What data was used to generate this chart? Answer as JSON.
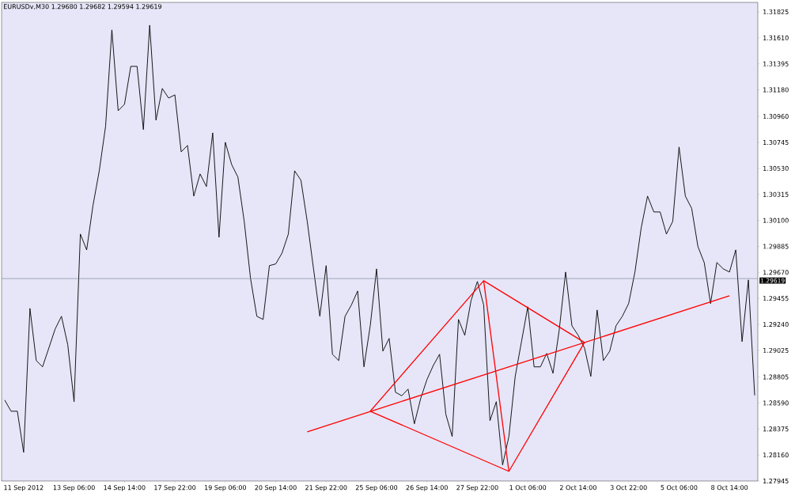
{
  "chart_data": {
    "type": "line",
    "title": "EURUSDv,M30  1.29680 1.29682 1.29594 1.29619",
    "categories": [
      null,
      null,
      null,
      "11 Sep 2012",
      null,
      null,
      null,
      null,
      null,
      null,
      null,
      "13 Sep 06:00",
      null,
      null,
      null,
      null,
      null,
      null,
      null,
      "14 Sep 14:00",
      null,
      null,
      null,
      null,
      null,
      null,
      null,
      "17 Sep 22:00",
      null,
      null,
      null,
      null,
      null,
      null,
      null,
      "19 Sep 06:00",
      null,
      null,
      null,
      null,
      null,
      null,
      null,
      "20 Sep 14:00",
      null,
      null,
      null,
      null,
      null,
      null,
      null,
      "21 Sep 22:00",
      null,
      null,
      null,
      null,
      null,
      null,
      null,
      "25 Sep 06:00",
      null,
      null,
      null,
      null,
      null,
      null,
      null,
      "26 Sep 14:00",
      null,
      null,
      null,
      null,
      null,
      null,
      null,
      "27 Sep 22:00",
      null,
      null,
      null,
      null,
      null,
      null,
      null,
      "1 Oct 06:00",
      null,
      null,
      null,
      null,
      null,
      null,
      null,
      "2 Oct 14:00",
      null,
      null,
      null,
      null,
      null,
      null,
      null,
      "3 Oct 22:00",
      null,
      null,
      null,
      null,
      null,
      null,
      null,
      "5 Oct 06:00",
      null,
      null,
      null,
      null,
      null,
      null,
      null,
      "8 Oct 14:00",
      null,
      null,
      null,
      null
    ],
    "ylim": [
      1.27945,
      1.31903
    ],
    "yticks": [
      {
        "value": 1.31825,
        "label": "1.31825"
      },
      {
        "value": 1.3161,
        "label": "1.31610"
      },
      {
        "value": 1.31395,
        "label": "1.31395"
      },
      {
        "value": 1.3118,
        "label": "1.31180"
      },
      {
        "value": 1.3096,
        "label": "1.30960"
      },
      {
        "value": 1.30745,
        "label": "1.30745"
      },
      {
        "value": 1.3053,
        "label": "1.30530"
      },
      {
        "value": 1.30315,
        "label": "1.30315"
      },
      {
        "value": 1.301,
        "label": "1.30100"
      },
      {
        "value": 1.29885,
        "label": "1.29885"
      },
      {
        "value": 1.2967,
        "label": "1.29670"
      },
      {
        "value": 1.29455,
        "label": "1.29455"
      },
      {
        "value": 1.2924,
        "label": "1.29240"
      },
      {
        "value": 1.29025,
        "label": "1.29025"
      },
      {
        "value": 1.28805,
        "label": "1.28805"
      },
      {
        "value": 1.2859,
        "label": "1.28590"
      },
      {
        "value": 1.28375,
        "label": "1.28375"
      },
      {
        "value": 1.2816,
        "label": "1.28160"
      },
      {
        "value": 1.27945,
        "label": "1.27945"
      }
    ],
    "ref_lines": [
      {
        "axis": "y",
        "value": 1.29619,
        "label": "1.29619",
        "color": "#708090"
      }
    ],
    "series": [
      {
        "color": "#000000",
        "values": [
          1.28614,
          1.28522,
          1.28522,
          1.28182,
          1.29372,
          1.28941,
          1.28889,
          1.29045,
          1.29202,
          1.29307,
          1.29072,
          1.28601,
          1.29987,
          1.29856,
          1.30223,
          1.3051,
          1.30877,
          1.31675,
          1.31007,
          1.3106,
          1.31374,
          1.31374,
          1.30851,
          1.31714,
          1.30929,
          1.31191,
          1.31112,
          1.31138,
          1.30667,
          1.3072,
          1.30301,
          1.30484,
          1.3038,
          1.30824,
          1.29961,
          1.30746,
          1.30563,
          1.30458,
          1.30092,
          1.29621,
          1.29307,
          1.29281,
          1.29726,
          1.2974,
          1.2983,
          1.29987,
          1.3051,
          1.30432,
          1.30092,
          1.29699,
          1.29307,
          1.29726,
          1.28993,
          1.28941,
          1.29307,
          1.294,
          1.29516,
          1.28889,
          1.29229,
          1.29699,
          1.29019,
          1.29124,
          1.28679,
          1.2865,
          1.28705,
          1.28418,
          1.28627,
          1.28784,
          1.289,
          1.28993,
          1.28496,
          1.28313,
          1.29281,
          1.2915,
          1.29438,
          1.29595,
          1.294,
          1.28444,
          1.28601,
          1.28078,
          1.28313,
          1.2881,
          1.29098,
          1.29386,
          1.28889,
          1.28889,
          1.29,
          1.28836,
          1.292,
          1.29673,
          1.29229,
          1.2915,
          1.29045,
          1.2881,
          1.29359,
          1.28941,
          1.29019,
          1.29229,
          1.29307,
          1.29412,
          1.29673,
          1.3004,
          1.30301,
          1.3017,
          1.3017,
          1.29987,
          1.30092,
          1.30707,
          1.30301,
          1.302,
          1.29883,
          1.2975,
          1.29412,
          1.29752,
          1.297,
          1.29673,
          1.29856,
          1.29098,
          1.29608,
          1.28653
        ]
      },
      {
        "type": "line",
        "color": "#ff0000",
        "values": [
          null,
          null,
          null,
          null,
          null,
          null,
          null,
          null,
          null,
          null,
          null,
          null,
          null,
          null,
          null,
          null,
          null,
          null,
          null,
          null,
          null,
          null,
          null,
          null,
          null,
          null,
          null,
          null,
          null,
          null,
          null,
          null,
          null,
          null,
          null,
          null,
          null,
          null,
          null,
          null,
          null,
          null,
          null,
          null,
          null,
          null,
          null,
          null,
          1.28352,
          null,
          null,
          null,
          null,
          null,
          null,
          null,
          null,
          null,
          null,
          null,
          null,
          null,
          null,
          null,
          null,
          null,
          null,
          null,
          null,
          null,
          null,
          null,
          null,
          null,
          null,
          null,
          null,
          null,
          null,
          null,
          null,
          null,
          null,
          null,
          null,
          null,
          null,
          null,
          null,
          null,
          null,
          null,
          null,
          null,
          null,
          null,
          null,
          null,
          null,
          null,
          null,
          null,
          null,
          null,
          null,
          null,
          null,
          null,
          null,
          null,
          null,
          null,
          null,
          null,
          null,
          1.29476,
          null,
          null,
          null,
          null
        ]
      },
      {
        "type": "line",
        "color": "#ff0000",
        "values": [
          null,
          null,
          null,
          null,
          null,
          null,
          null,
          null,
          null,
          null,
          null,
          null,
          null,
          null,
          null,
          null,
          null,
          null,
          null,
          null,
          null,
          null,
          null,
          null,
          null,
          null,
          null,
          null,
          null,
          null,
          null,
          null,
          null,
          null,
          null,
          null,
          null,
          null,
          null,
          null,
          null,
          null,
          null,
          null,
          null,
          null,
          null,
          null,
          null,
          null,
          null,
          null,
          null,
          null,
          null,
          null,
          null,
          null,
          1.28522,
          null,
          null,
          null,
          null,
          null,
          null,
          null,
          null,
          null,
          null,
          null,
          null,
          null,
          null,
          null,
          null,
          null,
          1.29601,
          null,
          null,
          null,
          null,
          null,
          null,
          null,
          null,
          null,
          null,
          null,
          null,
          null,
          null,
          null,
          1.29091,
          null,
          null,
          null,
          null,
          null,
          null,
          null,
          null,
          null,
          null,
          null,
          null,
          null,
          null,
          null,
          null,
          null,
          null,
          null,
          null,
          null,
          null,
          null,
          null,
          null,
          null,
          null
        ]
      },
      {
        "type": "line",
        "color": "#ff0000",
        "values": [
          null,
          null,
          null,
          null,
          null,
          null,
          null,
          null,
          null,
          null,
          null,
          null,
          null,
          null,
          null,
          null,
          null,
          null,
          null,
          null,
          null,
          null,
          null,
          null,
          null,
          null,
          null,
          null,
          null,
          null,
          null,
          null,
          null,
          null,
          null,
          null,
          null,
          null,
          null,
          null,
          null,
          null,
          null,
          null,
          null,
          null,
          null,
          null,
          null,
          null,
          null,
          null,
          null,
          null,
          null,
          null,
          null,
          null,
          1.28522,
          null,
          null,
          null,
          null,
          null,
          null,
          null,
          null,
          null,
          null,
          null,
          null,
          null,
          null,
          null,
          null,
          null,
          null,
          null,
          null,
          null,
          1.28025,
          null,
          null,
          null,
          null,
          null,
          null,
          null,
          null,
          null,
          null,
          null,
          1.29091,
          null,
          null,
          null,
          null,
          null,
          null,
          null,
          null,
          null,
          null,
          null,
          null,
          null,
          null,
          null,
          null,
          null,
          null,
          null,
          null,
          null,
          null,
          null,
          null,
          null,
          null,
          null
        ]
      },
      {
        "type": "line",
        "color": "#ff0000",
        "values": [
          null,
          null,
          null,
          null,
          null,
          null,
          null,
          null,
          null,
          null,
          null,
          null,
          null,
          null,
          null,
          null,
          null,
          null,
          null,
          null,
          null,
          null,
          null,
          null,
          null,
          null,
          null,
          null,
          null,
          null,
          null,
          null,
          null,
          null,
          null,
          null,
          null,
          null,
          null,
          null,
          null,
          null,
          null,
          null,
          null,
          null,
          null,
          null,
          null,
          null,
          null,
          null,
          null,
          null,
          null,
          null,
          null,
          null,
          null,
          null,
          null,
          null,
          null,
          null,
          null,
          null,
          null,
          null,
          null,
          null,
          null,
          null,
          null,
          null,
          null,
          null,
          1.29601,
          null,
          null,
          null,
          1.28025,
          null,
          null,
          null,
          null,
          null,
          null,
          null,
          null,
          null,
          null,
          null,
          null,
          null,
          null,
          null,
          null,
          null,
          null,
          null,
          null,
          null,
          null,
          null,
          null,
          null,
          null,
          null,
          null,
          null,
          null,
          null,
          null,
          null,
          null,
          null,
          null,
          null,
          null,
          null
        ]
      }
    ]
  }
}
